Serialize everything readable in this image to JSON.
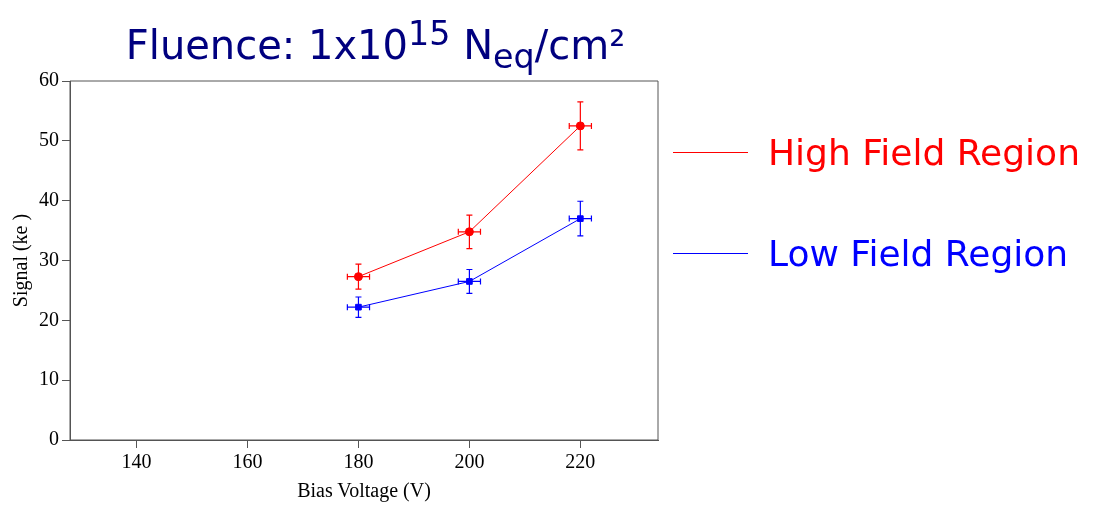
{
  "chart_data": {
    "type": "line",
    "title": "Fluence: 1x10$^{15}$ N$_{eq}$/cm²",
    "xlabel": "Bias Voltage (V)",
    "ylabel": "Signal (ke )",
    "x": [
      180,
      200,
      220
    ],
    "series": [
      {
        "name": "High Field Region",
        "color": "#ff0000",
        "marker": "circle",
        "values": [
          27.3,
          34.8,
          52.5
        ],
        "errors": [
          2.1,
          2.8,
          4.0
        ],
        "xerrors": [
          2,
          2,
          2
        ]
      },
      {
        "name": "Low Field Region",
        "color": "#0000ff",
        "marker": "square",
        "values": [
          22.2,
          26.5,
          37.0
        ],
        "errors": [
          1.7,
          2.0,
          2.9
        ],
        "xerrors": [
          2,
          2,
          2
        ]
      }
    ],
    "xlim": [
      128,
      234
    ],
    "xticks": [
      140,
      160,
      180,
      200,
      220
    ],
    "ylim": [
      0,
      60
    ],
    "yticks": [
      0,
      10,
      20,
      30,
      40,
      50,
      60
    ],
    "grid": false,
    "legend": "right"
  }
}
